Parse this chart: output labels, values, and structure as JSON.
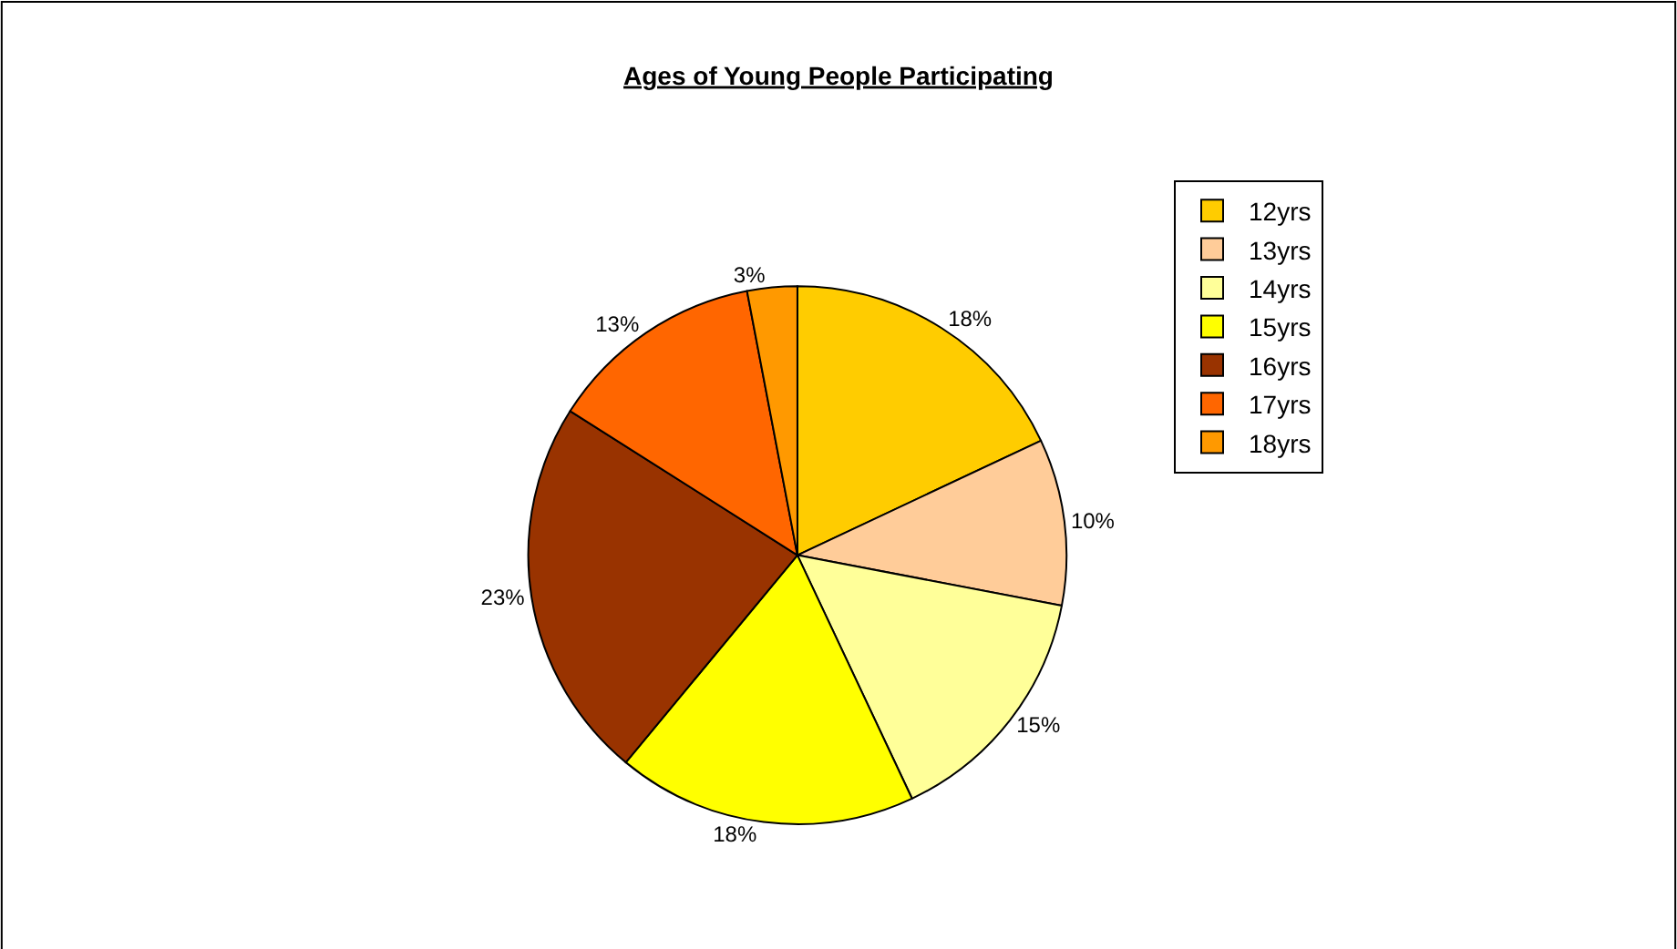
{
  "chart_data": {
    "type": "pie",
    "title": "Ages of Young People Participating",
    "categories": [
      "12yrs",
      "13yrs",
      "14yrs",
      "15yrs",
      "16yrs",
      "17yrs",
      "18yrs"
    ],
    "values": [
      18,
      10,
      15,
      18,
      23,
      13,
      3
    ],
    "value_labels": [
      "18%",
      "10%",
      "15%",
      "18%",
      "23%",
      "13%",
      "3%"
    ],
    "colors": [
      "#ffcc00",
      "#ffcc99",
      "#ffff99",
      "#ffff00",
      "#993300",
      "#ff6600",
      "#ff9900"
    ],
    "legend": "right"
  }
}
